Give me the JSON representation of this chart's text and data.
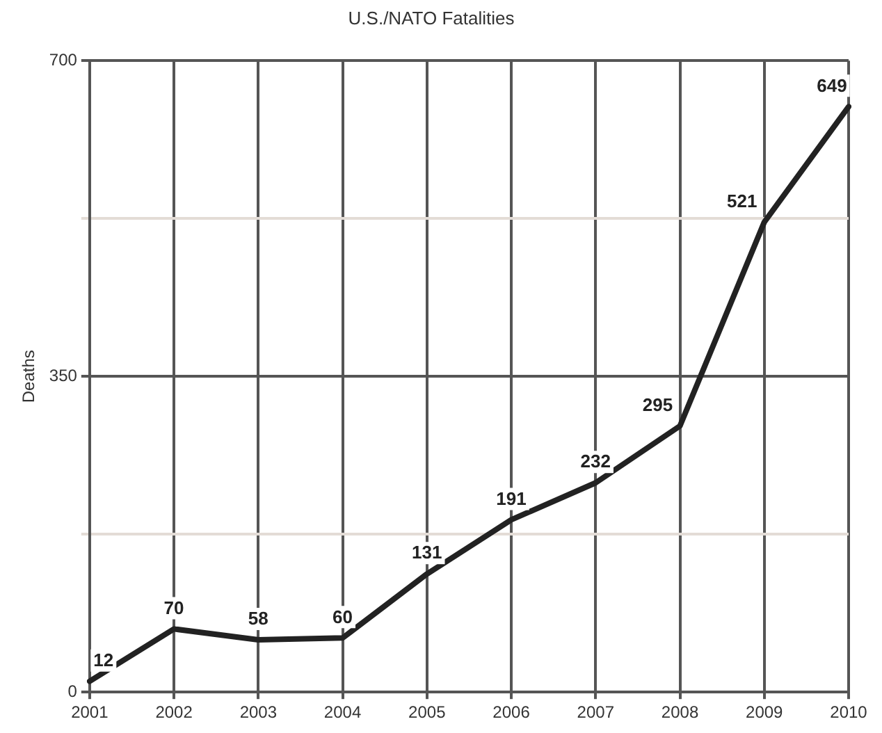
{
  "chart_data": {
    "type": "line",
    "title": "U.S./NATO Fatalities",
    "ylabel": "Deaths",
    "categories": [
      "2001",
      "2002",
      "2003",
      "2004",
      "2005",
      "2006",
      "2007",
      "2008",
      "2009",
      "2010"
    ],
    "series": [
      {
        "color": "#222222",
        "values": [
          12,
          70,
          58,
          60,
          131,
          191,
          232,
          295,
          521,
          649
        ]
      }
    ],
    "ylim": [
      0,
      700
    ],
    "yticks": [
      0,
      {
        "value": 175,
        "label": null
      },
      350,
      {
        "value": 525,
        "label": null
      },
      700
    ],
    "grid": true,
    "data_labels": true,
    "marker": "none",
    "line_style": "solid",
    "legend": false
  }
}
